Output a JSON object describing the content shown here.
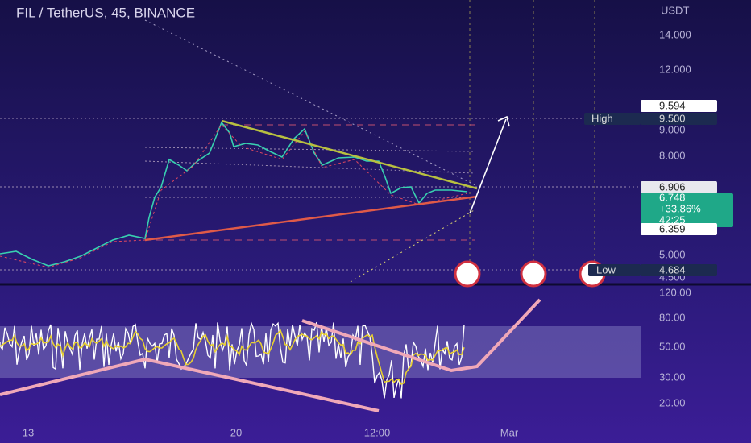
{
  "header": {
    "title": "FIL / TetherUS, 45, BINANCE"
  },
  "price_axis": {
    "unit": "USDT",
    "labels": [
      "14.000",
      "12.000",
      "9.000",
      "8.000",
      "5.000",
      "4.500"
    ]
  },
  "price_tags": {
    "high_marker": "9.594",
    "high_label": "High",
    "high_value": "9.500",
    "last_close": "6.906",
    "current_price": "6.748",
    "change": "+33.86%",
    "countdown": "42:25",
    "lower": "6.359",
    "low_label": "Low",
    "low_value": "4.684"
  },
  "rsi_axis": {
    "labels": [
      "120.00",
      "80.00",
      "50.00",
      "30.00",
      "20.00"
    ]
  },
  "time_axis": {
    "labels": [
      "13",
      "20",
      "12:00",
      "Mar"
    ]
  }
}
